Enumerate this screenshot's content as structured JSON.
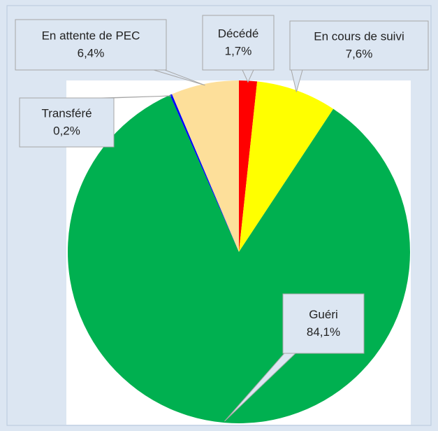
{
  "chart_data": {
    "type": "pie",
    "categories": [
      "Décédé",
      "En cours de suivi",
      "Guéri",
      "Transféré",
      "En attente de PEC"
    ],
    "values": [
      1.7,
      7.6,
      84.1,
      0.2,
      6.4
    ],
    "value_labels": [
      "1,7%",
      "7,6%",
      "84,1%",
      "0,2%",
      "6,4%"
    ],
    "colors": [
      "#ff0000",
      "#ffff00",
      "#00b050",
      "#0000ff",
      "#fddf9a"
    ]
  }
}
